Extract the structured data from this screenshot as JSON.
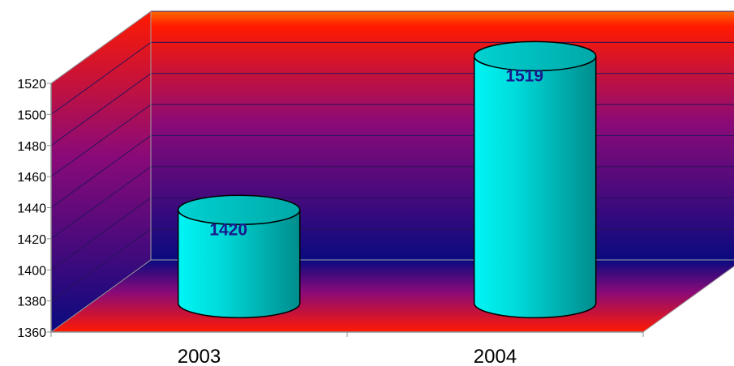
{
  "chart_data": {
    "type": "bar",
    "style": "3d-cylinder",
    "categories": [
      "2003",
      "2004"
    ],
    "values": [
      1420,
      1519
    ],
    "data_labels": [
      "1420",
      "1519"
    ],
    "title": "",
    "xlabel": "",
    "ylabel": "",
    "ylim": [
      1360,
      1520
    ],
    "yticks": [
      1360,
      1380,
      1400,
      1420,
      1440,
      1460,
      1480,
      1500,
      1520
    ],
    "ytick_labels": [
      "1360",
      "1380",
      "1400",
      "1420",
      "1440",
      "1460",
      "1480",
      "1500",
      "1520"
    ],
    "grid": true,
    "legend": "none",
    "colors": {
      "bar": "#00E5E5",
      "bar_dark": "#008C8C",
      "data_label": "#1A1A8C",
      "wall_top": "#FF1A00",
      "wall_mid": "#8A0A78",
      "wall_bottom": "#0A0A80",
      "floor_outer": "#FF1A00",
      "floor_inner": "#0A0A80"
    }
  }
}
